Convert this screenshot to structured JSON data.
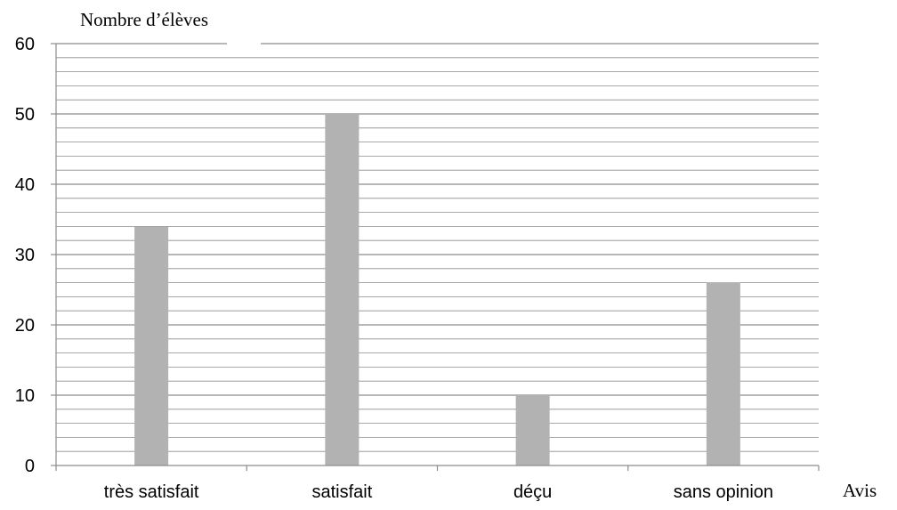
{
  "chart_data": {
    "type": "bar",
    "title": "",
    "ylabel": "Nombre d’élèves",
    "xlabel": "Avis",
    "categories": [
      "très satisfait",
      "satisfait",
      "déçu",
      "sans opinion"
    ],
    "values": [
      34,
      50,
      10,
      26
    ],
    "ylim": [
      0,
      60
    ],
    "yticks": [
      0,
      10,
      20,
      30,
      40,
      50,
      60
    ],
    "minor_grid_step": 2,
    "grid": true,
    "bar_color": "#b2b2b2",
    "grid_color": "#8c8c8c",
    "axis_color": "#8c8c8c"
  }
}
